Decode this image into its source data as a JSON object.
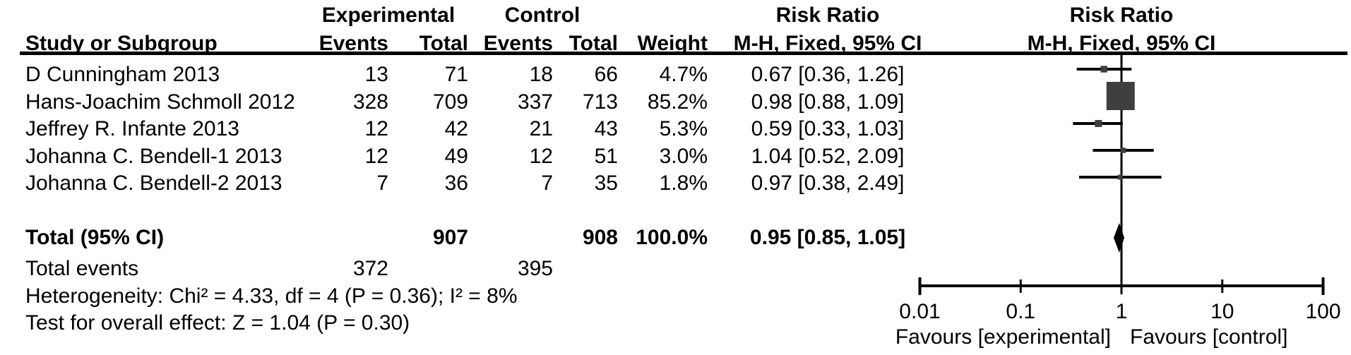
{
  "headers": {
    "group_experimental": "Experimental",
    "group_control": "Control",
    "risk_ratio_left": "Risk Ratio",
    "risk_ratio_right": "Risk Ratio",
    "study": "Study or Subgroup",
    "events_experimental": "Events",
    "total_experimental": "Total",
    "events_control": "Events",
    "total_control": "Total",
    "weight": "Weight",
    "mh_left": "M-H, Fixed, 95% CI",
    "mh_right": "M-H, Fixed, 95% CI"
  },
  "chart_data": {
    "type": "forest",
    "effect_measure": "Risk Ratio",
    "method": "M-H, Fixed, 95% CI",
    "x_scale": "log",
    "x_ticks": [
      "0.01",
      "0.1",
      "1",
      "10",
      "100"
    ],
    "x_tick_values": [
      0.01,
      0.1,
      1,
      10,
      100
    ],
    "null_line": 1,
    "xlim": [
      0.01,
      100
    ],
    "favours_left": "Favours [experimental]",
    "favours_right": "Favours [control]",
    "studies": [
      {
        "name": "D Cunningham 2013",
        "exp_events": "13",
        "exp_total": "71",
        "ctrl_events": "18",
        "ctrl_total": "66",
        "weight": "4.7%",
        "rr_label": "0.67 [0.36, 1.26]",
        "rr": 0.67,
        "ci_low": 0.36,
        "ci_high": 1.26,
        "weight_value": 4.7
      },
      {
        "name": "Hans-Joachim Schmoll 2012",
        "exp_events": "328",
        "exp_total": "709",
        "ctrl_events": "337",
        "ctrl_total": "713",
        "weight": "85.2%",
        "rr_label": "0.98 [0.88, 1.09]",
        "rr": 0.98,
        "ci_low": 0.88,
        "ci_high": 1.09,
        "weight_value": 85.2
      },
      {
        "name": "Jeffrey R. Infante 2013",
        "exp_events": "12",
        "exp_total": "42",
        "ctrl_events": "21",
        "ctrl_total": "43",
        "weight": "5.3%",
        "rr_label": "0.59 [0.33, 1.03]",
        "rr": 0.59,
        "ci_low": 0.33,
        "ci_high": 1.03,
        "weight_value": 5.3
      },
      {
        "name": "Johanna C. Bendell-1 2013",
        "exp_events": "12",
        "exp_total": "49",
        "ctrl_events": "12",
        "ctrl_total": "51",
        "weight": "3.0%",
        "rr_label": "1.04 [0.52, 2.09]",
        "rr": 1.04,
        "ci_low": 0.52,
        "ci_high": 2.09,
        "weight_value": 3.0
      },
      {
        "name": "Johanna C. Bendell-2 2013",
        "exp_events": "7",
        "exp_total": "36",
        "ctrl_events": "7",
        "ctrl_total": "35",
        "weight": "1.8%",
        "rr_label": "0.97 [0.38, 2.49]",
        "rr": 0.97,
        "ci_low": 0.38,
        "ci_high": 2.49,
        "weight_value": 1.8
      }
    ],
    "total": {
      "label": "Total (95% CI)",
      "exp_total": "907",
      "ctrl_total": "908",
      "weight": "100.0%",
      "rr_label": "0.95 [0.85, 1.05]",
      "rr": 0.95,
      "ci_low": 0.85,
      "ci_high": 1.05
    },
    "total_events": {
      "label": "Total events",
      "exp": "372",
      "ctrl": "395"
    },
    "footnotes": {
      "heterogeneity": "Heterogeneity: Chi² = 4.33, df = 4 (P = 0.36); I² = 8%",
      "overall_effect": "Test for overall effect: Z = 1.04 (P = 0.30)"
    },
    "colors": {
      "square": "#3f3f3f",
      "line": "#000000",
      "diamond": "#000000"
    }
  }
}
